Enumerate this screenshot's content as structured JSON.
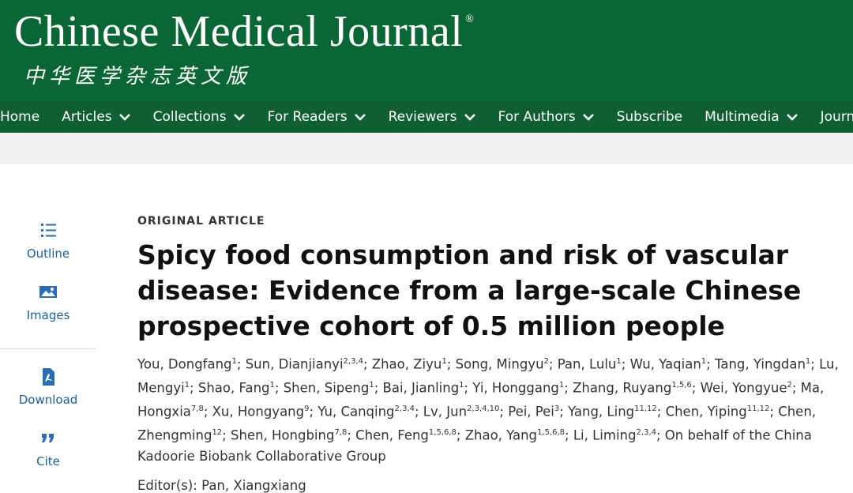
{
  "header": {
    "title": "Chinese Medical Journal",
    "registered": "®",
    "subtitle": "中华医学杂志英文版"
  },
  "nav": {
    "items": [
      {
        "label": "Home",
        "dropdown": false
      },
      {
        "label": "Articles",
        "dropdown": true
      },
      {
        "label": "Collections",
        "dropdown": true
      },
      {
        "label": "For Readers",
        "dropdown": true
      },
      {
        "label": "Reviewers",
        "dropdown": true
      },
      {
        "label": "For Authors",
        "dropdown": true
      },
      {
        "label": "Subscribe",
        "dropdown": false
      },
      {
        "label": "Multimedia",
        "dropdown": true
      },
      {
        "label": "Journa",
        "dropdown": false
      }
    ]
  },
  "sidebar": {
    "tools": [
      {
        "label": "Outline",
        "icon": "list"
      },
      {
        "label": "Images",
        "icon": "image"
      },
      {
        "label": "Download",
        "icon": "pdf"
      },
      {
        "label": "Cite",
        "icon": "quote"
      }
    ]
  },
  "article": {
    "type_label": "ORIGINAL ARTICLE",
    "title": "Spicy food consumption and risk of vascular disease: Evidence from a large-scale Chinese prospective cohort of 0.5 million people",
    "separator": ";",
    "authors": [
      {
        "name": "You, Dongfang",
        "affil": "1"
      },
      {
        "name": "Sun, Dianjianyi",
        "affil": "2,3,4"
      },
      {
        "name": "Zhao, Ziyu",
        "affil": "1"
      },
      {
        "name": "Song, Mingyu",
        "affil": "2"
      },
      {
        "name": "Pan, Lulu",
        "affil": "1"
      },
      {
        "name": "Wu, Yaqian",
        "affil": "1"
      },
      {
        "name": "Tang, Yingdan",
        "affil": "1"
      },
      {
        "name": "Lu, Mengyi",
        "affil": "1"
      },
      {
        "name": "Shao, Fang",
        "affil": "1"
      },
      {
        "name": "Shen, Sipeng",
        "affil": "1"
      },
      {
        "name": "Bai, Jianling",
        "affil": "1"
      },
      {
        "name": "Yi, Honggang",
        "affil": "1"
      },
      {
        "name": "Zhang, Ruyang",
        "affil": "1,5,6"
      },
      {
        "name": "Wei, Yongyue",
        "affil": "2"
      },
      {
        "name": "Ma, Hongxia",
        "affil": "7,8"
      },
      {
        "name": "Xu, Hongyang",
        "affil": "9"
      },
      {
        "name": "Yu, Canqing",
        "affil": "2,3,4"
      },
      {
        "name": "Lv, Jun",
        "affil": "2,3,4,10"
      },
      {
        "name": "Pei, Pei",
        "affil": "3"
      },
      {
        "name": "Yang, Ling",
        "affil": "11,12"
      },
      {
        "name": "Chen, Yiping",
        "affil": "11,12"
      },
      {
        "name": "Chen, Zhengming",
        "affil": "12"
      },
      {
        "name": "Shen, Hongbing",
        "affil": "7,8"
      },
      {
        "name": "Chen, Feng",
        "affil": "1,5,6,8"
      },
      {
        "name": "Zhao, Yang",
        "affil": "1,5,6,8"
      },
      {
        "name": "Li, Liming",
        "affil": "2,3,4"
      }
    ],
    "group": "On behalf of the China Kadoorie Biobank Collaborative Group",
    "editor_label": "Editor(s):",
    "editor": "Pan, Xiangxiang"
  }
}
